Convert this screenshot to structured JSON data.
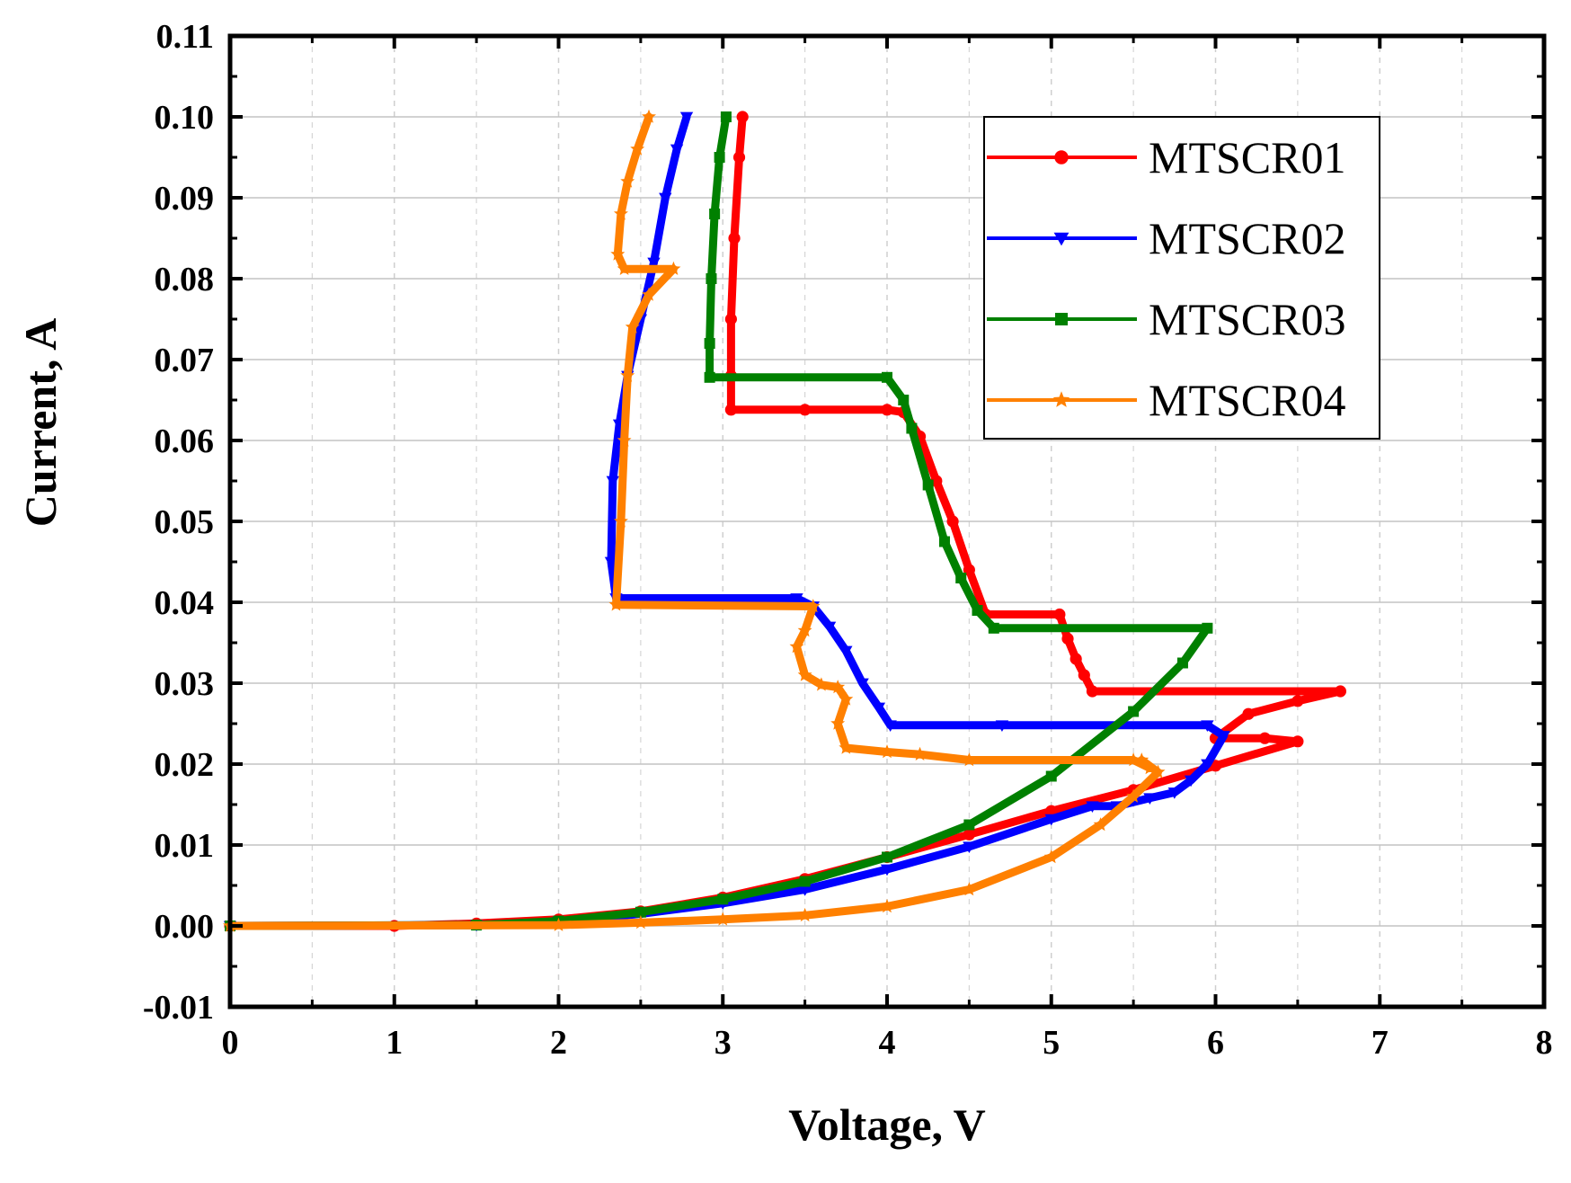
{
  "chart_data": {
    "type": "line",
    "title": "",
    "xlabel": "Voltage, V",
    "ylabel": "Current, A",
    "xlim": [
      0,
      8
    ],
    "ylim": [
      -0.01,
      0.11
    ],
    "x_ticks": [
      0,
      1,
      2,
      3,
      4,
      5,
      6,
      7,
      8
    ],
    "x_tick_labels": [
      "0",
      "1",
      "2",
      "3",
      "4",
      "5",
      "6",
      "7",
      "8"
    ],
    "y_ticks": [
      -0.01,
      0.0,
      0.01,
      0.02,
      0.03,
      0.04,
      0.05,
      0.06,
      0.07,
      0.08,
      0.09,
      0.1,
      0.11
    ],
    "y_tick_labels": [
      "-0.01",
      "0.00",
      "0.01",
      "0.02",
      "0.03",
      "0.04",
      "0.05",
      "0.06",
      "0.07",
      "0.08",
      "0.09",
      "0.10",
      "0.11"
    ],
    "grid": true,
    "legend_position": "top-right",
    "series": [
      {
        "name": "MTSCR01",
        "color": "#ff0000",
        "marker": "circle",
        "x": [
          0.0,
          1.0,
          1.5,
          2.0,
          2.5,
          3.0,
          3.5,
          4.0,
          4.5,
          5.0,
          5.5,
          6.0,
          6.5,
          6.3,
          6.0,
          6.2,
          6.5,
          6.76,
          5.25,
          5.2,
          5.15,
          5.1,
          5.05,
          4.6,
          4.5,
          4.4,
          4.3,
          4.2,
          4.1,
          4.0,
          3.5,
          3.05,
          3.05,
          3.05,
          3.07,
          3.1,
          3.12
        ],
        "y": [
          0.0,
          0.0,
          0.0003,
          0.0008,
          0.0018,
          0.0035,
          0.0058,
          0.0085,
          0.0113,
          0.0142,
          0.0168,
          0.0198,
          0.0228,
          0.0232,
          0.0232,
          0.0262,
          0.0278,
          0.029,
          0.029,
          0.031,
          0.033,
          0.0355,
          0.0385,
          0.0385,
          0.044,
          0.05,
          0.055,
          0.0605,
          0.0635,
          0.0638,
          0.0638,
          0.0638,
          0.068,
          0.075,
          0.085,
          0.095,
          0.1
        ]
      },
      {
        "name": "MTSCR02",
        "color": "#0000ff",
        "marker": "triangle-down",
        "x": [
          0.0,
          1.5,
          2.0,
          2.5,
          3.0,
          3.5,
          4.0,
          4.5,
          5.0,
          5.25,
          5.4,
          5.6,
          5.75,
          5.85,
          5.95,
          6.05,
          5.95,
          4.7,
          4.02,
          3.95,
          3.85,
          3.75,
          3.65,
          3.55,
          3.45,
          2.35,
          2.32,
          2.33,
          2.37,
          2.42,
          2.5,
          2.58,
          2.65,
          2.72,
          2.78
        ],
        "y": [
          0.0,
          0.0001,
          0.0005,
          0.0015,
          0.0028,
          0.0045,
          0.007,
          0.0098,
          0.0132,
          0.0148,
          0.0148,
          0.0158,
          0.0165,
          0.018,
          0.02,
          0.0235,
          0.0248,
          0.0248,
          0.0248,
          0.027,
          0.03,
          0.034,
          0.037,
          0.0395,
          0.0405,
          0.0405,
          0.045,
          0.055,
          0.062,
          0.068,
          0.075,
          0.082,
          0.09,
          0.096,
          0.1
        ]
      },
      {
        "name": "MTSCR03",
        "color": "#008000",
        "marker": "square",
        "x": [
          0.0,
          1.5,
          2.0,
          2.5,
          3.0,
          3.5,
          4.0,
          4.5,
          5.0,
          5.5,
          5.8,
          5.95,
          4.65,
          4.55,
          4.45,
          4.35,
          4.25,
          4.15,
          4.1,
          4.0,
          2.92,
          2.92,
          2.93,
          2.95,
          2.98,
          3.02
        ],
        "y": [
          0.0,
          0.0001,
          0.0006,
          0.0017,
          0.0033,
          0.0055,
          0.0085,
          0.0125,
          0.0185,
          0.0265,
          0.0325,
          0.0368,
          0.0368,
          0.039,
          0.043,
          0.0475,
          0.0545,
          0.0615,
          0.065,
          0.0678,
          0.0678,
          0.072,
          0.08,
          0.088,
          0.095,
          0.1
        ]
      },
      {
        "name": "MTSCR04",
        "color": "#ff8000",
        "marker": "star",
        "x": [
          0.0,
          2.0,
          2.5,
          3.0,
          3.5,
          4.0,
          4.5,
          5.0,
          5.3,
          5.5,
          5.65,
          5.55,
          5.6,
          5.5,
          4.5,
          4.2,
          4.0,
          3.75,
          3.7,
          3.75,
          3.7,
          3.6,
          3.5,
          3.45,
          3.5,
          3.55,
          2.35,
          2.38,
          2.4,
          2.42,
          2.45,
          2.55,
          2.7,
          2.4,
          2.36,
          2.38,
          2.42,
          2.48,
          2.55
        ],
        "y": [
          0.0,
          0.0001,
          0.0004,
          0.0008,
          0.0013,
          0.0024,
          0.0045,
          0.0085,
          0.0125,
          0.016,
          0.019,
          0.0205,
          0.0195,
          0.0205,
          0.0205,
          0.0212,
          0.0215,
          0.022,
          0.025,
          0.028,
          0.0295,
          0.0298,
          0.031,
          0.0345,
          0.0365,
          0.0395,
          0.0397,
          0.05,
          0.06,
          0.068,
          0.074,
          0.078,
          0.0812,
          0.0812,
          0.083,
          0.088,
          0.092,
          0.096,
          0.1
        ]
      }
    ]
  }
}
